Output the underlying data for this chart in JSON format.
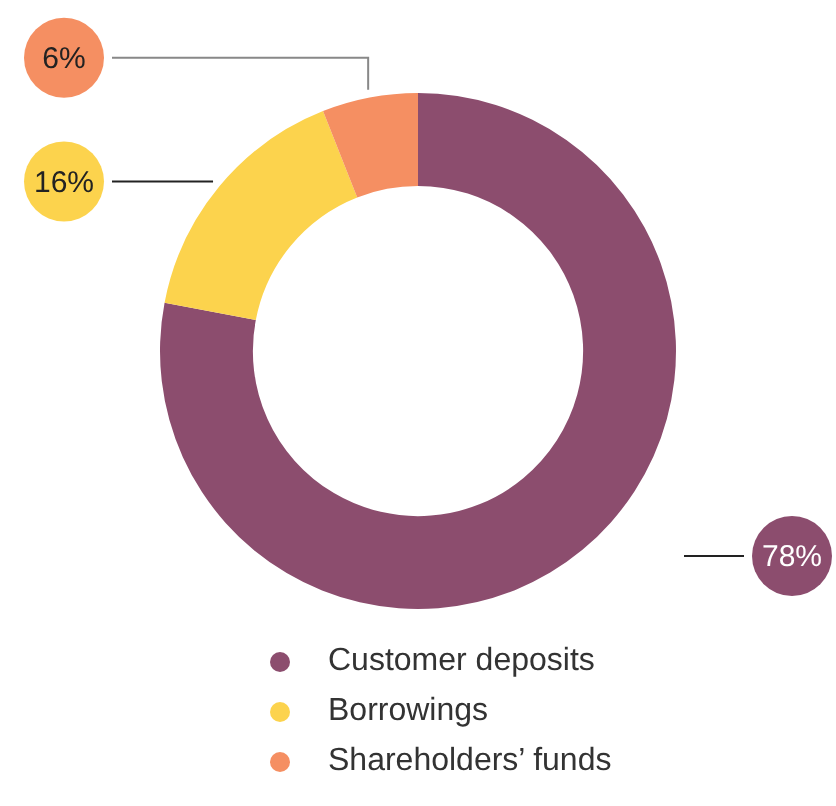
{
  "chart_data": {
    "type": "donut",
    "categories": [
      "Customer deposits",
      "Borrowings",
      "Shareholders’ funds"
    ],
    "values": [
      78,
      16,
      6
    ],
    "colors": [
      "#8c4d6e",
      "#fcd34d",
      "#f58f62"
    ],
    "value_labels": [
      "78%",
      "16%",
      "6%"
    ],
    "legend": "bottom"
  }
}
